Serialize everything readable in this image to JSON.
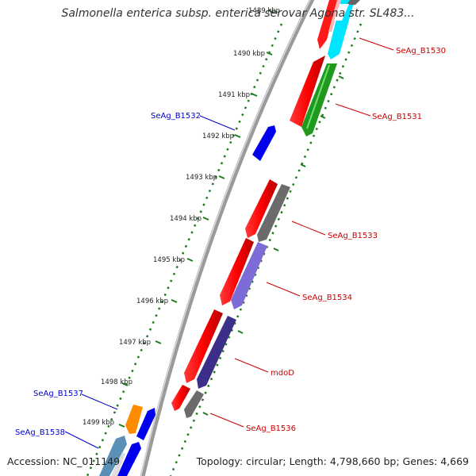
{
  "title": "Salmonella enterica subsp. enterica serovar Agona str. SL483...",
  "accession": "Accession: NC_011149",
  "summary": "Topology: circular; Length: 4,798,660 bp; Genes: 4,669",
  "colors": {
    "backbone": "#8a8a8a",
    "tick": "#1f7a1f",
    "forward_label": "#cc0000",
    "reverse_label": "#0000cc"
  },
  "ticks": [
    "1489 kbp",
    "1490 kbp",
    "1491 kbp",
    "1492 kbp",
    "1493 kbp",
    "1494 kbp",
    "1495 kbp",
    "1496 kbp",
    "1497 kbp",
    "1498 kbp",
    "1499 kbp"
  ],
  "genes": [
    {
      "label": "SeAg_B1530",
      "strand": "forward"
    },
    {
      "label": "SeAg_B1531",
      "strand": "forward"
    },
    {
      "label": "SeAg_B1532",
      "strand": "reverse"
    },
    {
      "label": "SeAg_B1533",
      "strand": "forward"
    },
    {
      "label": "SeAg_B1534",
      "strand": "forward"
    },
    {
      "label": "mdoD",
      "strand": "forward"
    },
    {
      "label": "SeAg_B1536",
      "strand": "forward"
    },
    {
      "label": "SeAg_B1537",
      "strand": "reverse"
    },
    {
      "label": "SeAg_B1538",
      "strand": "reverse"
    }
  ]
}
